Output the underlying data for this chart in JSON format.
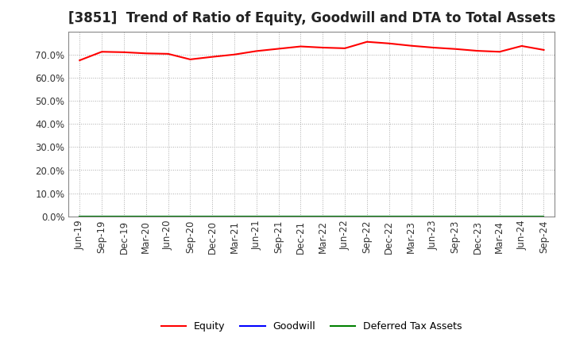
{
  "title": "[3851]  Trend of Ratio of Equity, Goodwill and DTA to Total Assets",
  "x_labels": [
    "Jun-19",
    "Sep-19",
    "Dec-19",
    "Mar-20",
    "Jun-20",
    "Sep-20",
    "Dec-20",
    "Mar-21",
    "Jun-21",
    "Sep-21",
    "Dec-21",
    "Mar-22",
    "Jun-22",
    "Sep-22",
    "Dec-22",
    "Mar-23",
    "Jun-23",
    "Sep-23",
    "Dec-23",
    "Mar-24",
    "Jun-24",
    "Sep-24"
  ],
  "equity": [
    0.675,
    0.712,
    0.71,
    0.705,
    0.703,
    0.679,
    0.69,
    0.7,
    0.715,
    0.725,
    0.735,
    0.73,
    0.727,
    0.755,
    0.748,
    0.738,
    0.73,
    0.724,
    0.716,
    0.712,
    0.737,
    0.72
  ],
  "goodwill": [
    0.0,
    0.0,
    0.0,
    0.0,
    0.0,
    0.0,
    0.0,
    0.0,
    0.0,
    0.0,
    0.0,
    0.0,
    0.0,
    0.0,
    0.0,
    0.0,
    0.0,
    0.0,
    0.0,
    0.0,
    0.0,
    0.0
  ],
  "dta": [
    0.0,
    0.0,
    0.0,
    0.0,
    0.0,
    0.0,
    0.0,
    0.0,
    0.0,
    0.0,
    0.0,
    0.0,
    0.0,
    0.0,
    0.0,
    0.0,
    0.0,
    0.0,
    0.0,
    0.0,
    0.0,
    0.0
  ],
  "equity_color": "#ff0000",
  "goodwill_color": "#0000ff",
  "dta_color": "#008000",
  "ylim": [
    0.0,
    0.8
  ],
  "yticks": [
    0.0,
    0.1,
    0.2,
    0.3,
    0.4,
    0.5,
    0.6,
    0.7
  ],
  "legend_labels": [
    "Equity",
    "Goodwill",
    "Deferred Tax Assets"
  ],
  "background_color": "#ffffff",
  "grid_color": "#aaaaaa",
  "title_fontsize": 12,
  "tick_fontsize": 8.5,
  "legend_fontsize": 9
}
